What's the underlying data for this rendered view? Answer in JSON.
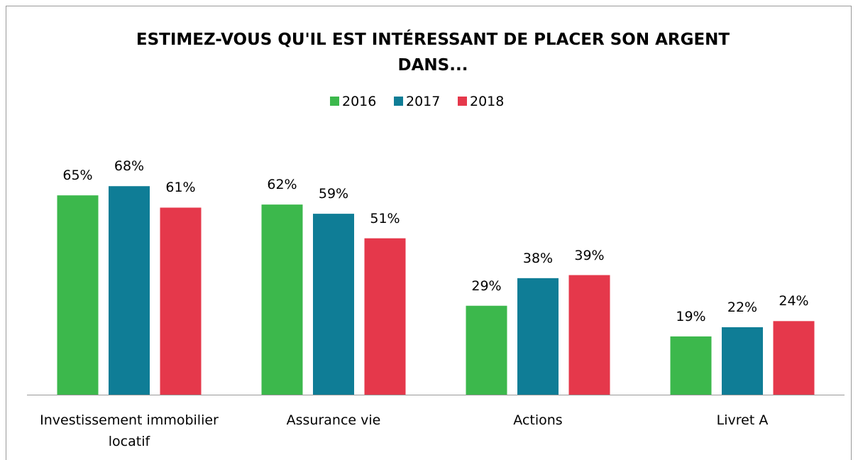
{
  "chart_data": {
    "type": "bar",
    "title": "ESTIMEZ-VOUS QU'IL EST INTÉRESSANT DE PLACER SON ARGENT DANS...",
    "categories": [
      "Investissement immobilier locatif",
      "Assurance vie",
      "Actions",
      "Livret A"
    ],
    "series": [
      {
        "name": "2016",
        "color": "#3cb84c",
        "values": [
          65,
          62,
          29,
          19
        ],
        "value_labels": [
          "65%",
          "62%",
          "29%",
          "19%"
        ]
      },
      {
        "name": "2017",
        "color": "#0f7d96",
        "values": [
          68,
          59,
          38,
          22
        ],
        "value_labels": [
          "68%",
          "59%",
          "38%",
          "22%"
        ]
      },
      {
        "name": "2018",
        "color": "#e5384b",
        "values": [
          61,
          51,
          39,
          24
        ],
        "value_labels": [
          "61%",
          "51%",
          "39%",
          "24%"
        ]
      }
    ],
    "legend": "top"
  }
}
